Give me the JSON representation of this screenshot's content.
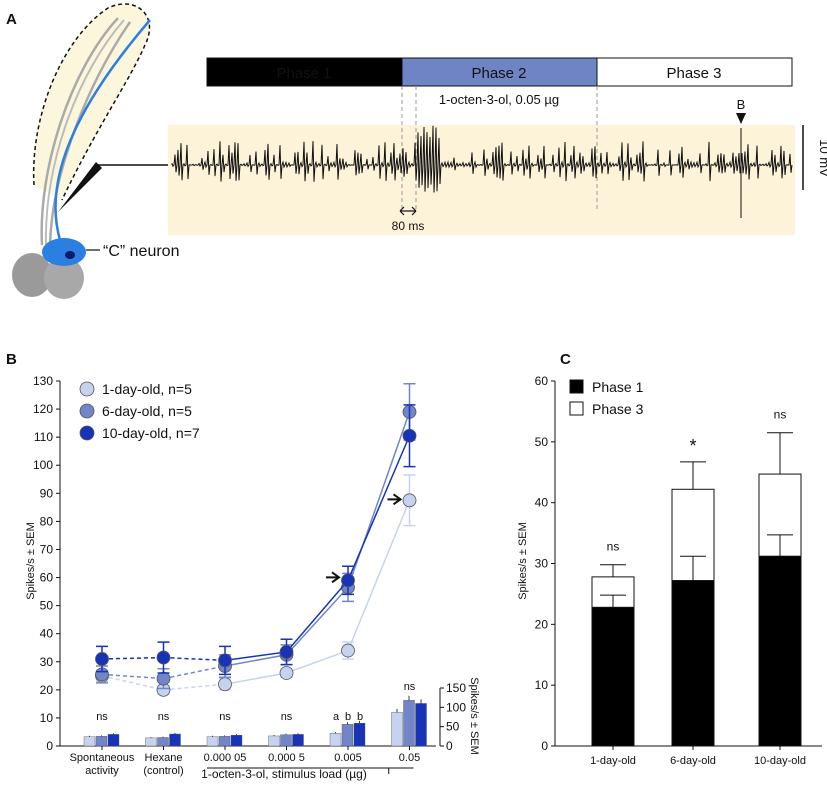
{
  "panel_a": {
    "label": "A",
    "phases": [
      {
        "name": "Phase 1",
        "color": "#000000",
        "text_color": "#ffffff"
      },
      {
        "name": "Phase 2",
        "color": "#6f84c4",
        "text_color": "#ffffff"
      },
      {
        "name": "Phase 3",
        "color": "#ffffff",
        "text_color": "#000000"
      }
    ],
    "stimulus_label": "1-octen-3-ol, 0.05 µg",
    "marker_label": "B",
    "scale_bar_label": "10 mV",
    "time_scale_label": "80 ms",
    "neuron_label": "“C” neuron",
    "trace_bg": "#fdf3d9",
    "neuron_color": "#2b7fe0"
  },
  "chart_data": [
    {
      "id": "B",
      "type": "line",
      "panel_label": "B",
      "ylabel": "Spikes/s ± SEM",
      "ylim": [
        0,
        130
      ],
      "yticks": [
        0,
        10,
        20,
        30,
        40,
        50,
        60,
        70,
        80,
        90,
        100,
        110,
        120,
        130
      ],
      "categories": [
        "Spontaneous activity",
        "Hexane (control)",
        "0.000 05",
        "0.000 5",
        "0.005",
        "0.05"
      ],
      "category_lines": [
        [
          "Spontaneous",
          "activity"
        ],
        [
          "Hexane",
          "(control)"
        ],
        [
          "0.000 05"
        ],
        [
          "0.000 5"
        ],
        [
          "0.005"
        ],
        [
          "0.05"
        ]
      ],
      "xlabel": "1-octen-3-ol, stimulus load (µg)",
      "series": [
        {
          "name": "1-day-old, n=5",
          "color": "#c6d3f0",
          "values": [
            25,
            20,
            22,
            26,
            34,
            87.5
          ],
          "err": [
            2,
            1.5,
            2,
            1.5,
            3,
            9
          ]
        },
        {
          "name": "6-day-old, n=5",
          "color": "#7086c8",
          "values": [
            25.5,
            24,
            28.5,
            32.5,
            56.5,
            119
          ],
          "err": [
            3,
            3.5,
            4,
            3.5,
            5,
            10
          ]
        },
        {
          "name": "10-day-old, n=7",
          "color": "#1733b8",
          "values": [
            31,
            31.5,
            30.5,
            33.5,
            59,
            110.5
          ],
          "err": [
            4.5,
            5.5,
            5,
            4.5,
            5,
            11
          ]
        }
      ],
      "annotations": [
        "ns",
        "ns",
        "ns",
        "ns",
        "a b b",
        "ns"
      ],
      "inset_bars": {
        "ylabel": "Spikes/s ± SEM",
        "ylim": [
          0,
          150
        ],
        "yticks": [
          0,
          50,
          100,
          150
        ],
        "values": [
          [
            24,
            21,
            24,
            26,
            33,
            87
          ],
          [
            25,
            22,
            25,
            29,
            56,
            118
          ],
          [
            30,
            31,
            28,
            30,
            59,
            110
          ]
        ],
        "labels": [
          [
            "ns"
          ],
          [
            "ns"
          ],
          [
            "ns"
          ],
          [
            "ns"
          ],
          [
            "a",
            "b",
            "b"
          ],
          [
            "ns"
          ]
        ]
      }
    },
    {
      "id": "C",
      "type": "bar",
      "panel_label": "C",
      "ylabel": "Spikes/s ± SEM",
      "ylim": [
        0,
        60
      ],
      "yticks": [
        0,
        10,
        20,
        30,
        40,
        50,
        60
      ],
      "categories": [
        "1-day-old",
        "6-day-old",
        "10-day-old"
      ],
      "series": [
        {
          "name": "Phase 1",
          "color": "#000000",
          "values": [
            22.8,
            27.2,
            31.2
          ],
          "err": [
            2,
            4,
            3.5
          ]
        },
        {
          "name": "Phase 3",
          "color": "#ffffff",
          "values": [
            27.8,
            42.2,
            44.7
          ],
          "err": [
            2,
            4.5,
            6.8
          ]
        }
      ],
      "annotations": [
        "ns",
        "*",
        "ns"
      ]
    }
  ]
}
